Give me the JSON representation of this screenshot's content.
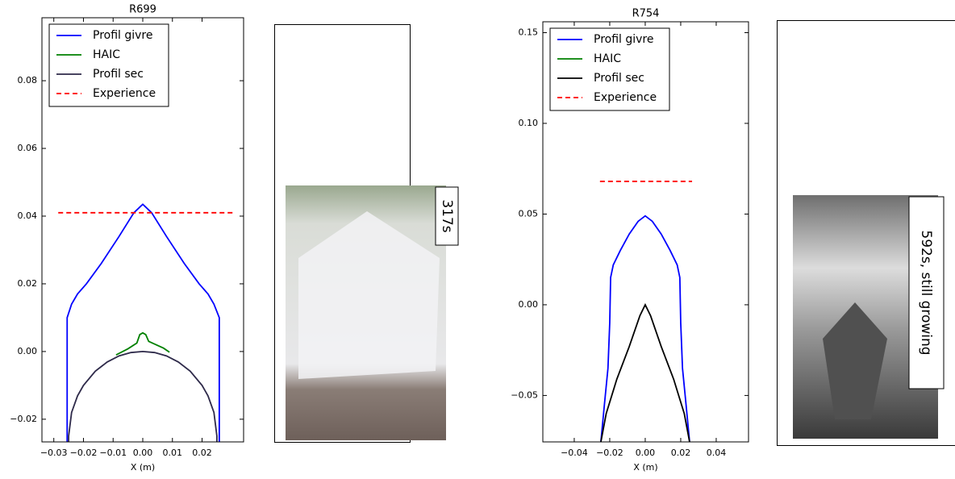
{
  "chart_data": [
    {
      "type": "line",
      "title": "R699",
      "xlabel": "X (m)",
      "xlim": [
        -0.034,
        0.034
      ],
      "ylim": [
        -0.0267,
        0.0986
      ],
      "xticks": [
        {
          "value": -0.03,
          "label": "−0.03"
        },
        {
          "value": -0.02,
          "label": "−0.02"
        },
        {
          "value": -0.01,
          "label": "−0.01"
        },
        {
          "value": 0,
          "label": "0.00"
        },
        {
          "value": 0.01,
          "label": "0.01"
        },
        {
          "value": 0.02,
          "label": "0.02"
        }
      ],
      "yticks": [
        {
          "value": -0.02,
          "label": "−0.02"
        },
        {
          "value": 0,
          "label": "0.00"
        },
        {
          "value": 0.02,
          "label": "0.02"
        },
        {
          "value": 0.04,
          "label": "0.04"
        },
        {
          "value": 0.06,
          "label": "0.06"
        },
        {
          "value": 0.08,
          "label": "0.08"
        }
      ],
      "legend": "upper left",
      "series": [
        {
          "name": "Profil givre",
          "color": "#0000ff",
          "x": [
            -0.0255,
            -0.0255,
            -0.024,
            -0.022,
            -0.019,
            -0.014,
            -0.008,
            -0.003,
            0,
            0.003,
            0.008,
            0.014,
            0.019,
            0.022,
            0.024,
            0.0258,
            0.0258
          ],
          "values": [
            -0.0267,
            0.01,
            0.014,
            0.017,
            0.02,
            0.026,
            0.034,
            0.041,
            0.0435,
            0.041,
            0.034,
            0.026,
            0.02,
            0.017,
            0.014,
            0.01,
            -0.0267
          ]
        },
        {
          "name": "HAIC",
          "color": "#008000",
          "x": [
            -0.009,
            -0.005,
            -0.002,
            -0.001,
            0,
            0.001,
            0.002,
            0.004,
            0.007,
            0.009
          ],
          "values": [
            -0.001,
            0.0008,
            0.0025,
            0.005,
            0.0055,
            0.005,
            0.003,
            0.0022,
            0.001,
            -0.0002
          ]
        },
        {
          "name": "Profil sec",
          "color": "#2e2a4a",
          "x": [
            -0.025,
            -0.025,
            -0.024,
            -0.022,
            -0.02,
            -0.016,
            -0.012,
            -0.008,
            -0.004,
            0,
            0.004,
            0.008,
            0.012,
            0.016,
            0.02,
            0.022,
            0.024,
            0.025,
            0.025
          ],
          "values": [
            -0.0267,
            -0.025,
            -0.018,
            -0.0131,
            -0.01,
            -0.0058,
            -0.0031,
            -0.0013,
            -0.0003,
            0,
            -0.0003,
            -0.0013,
            -0.0031,
            -0.0058,
            -0.01,
            -0.0131,
            -0.018,
            -0.025,
            -0.0267
          ]
        },
        {
          "name": "Experience",
          "color": "#ff0000",
          "linestyle": "dashed",
          "x": [
            -0.0285,
            0.0307
          ],
          "values": [
            0.041,
            0.041
          ]
        }
      ]
    },
    {
      "type": "line",
      "title": "R754",
      "xlabel": "X (m)",
      "xlim": [
        -0.0577,
        0.0582
      ],
      "ylim": [
        -0.0756,
        0.156
      ],
      "xticks": [
        {
          "value": -0.04,
          "label": "−0.04"
        },
        {
          "value": -0.02,
          "label": "−0.02"
        },
        {
          "value": 0,
          "label": "0.00"
        },
        {
          "value": 0.02,
          "label": "0.02"
        },
        {
          "value": 0.04,
          "label": "0.04"
        }
      ],
      "yticks": [
        {
          "value": -0.05,
          "label": "−0.05"
        },
        {
          "value": 0,
          "label": "0.00"
        },
        {
          "value": 0.05,
          "label": "0.05"
        },
        {
          "value": 0.1,
          "label": "0.10"
        },
        {
          "value": 0.15,
          "label": "0.15"
        }
      ],
      "legend": "upper left",
      "series": [
        {
          "name": "Profil givre",
          "color": "#0000ff",
          "x": [
            -0.025,
            -0.023,
            -0.021,
            -0.02,
            -0.0195,
            -0.018,
            -0.014,
            -0.009,
            -0.004,
            0,
            0.004,
            0.009,
            0.014,
            0.018,
            0.0195,
            0.02,
            0.021,
            0.023,
            0.025
          ],
          "values": [
            -0.0756,
            -0.055,
            -0.035,
            -0.01,
            0.015,
            0.022,
            0.03,
            0.039,
            0.046,
            0.049,
            0.046,
            0.039,
            0.03,
            0.022,
            0.015,
            -0.01,
            -0.035,
            -0.055,
            -0.0756
          ]
        },
        {
          "name": "HAIC",
          "color": "#008000",
          "x": [],
          "values": []
        },
        {
          "name": "Profil sec",
          "color": "#000000",
          "x": [
            -0.025,
            -0.022,
            -0.016,
            -0.009,
            -0.003,
            0,
            0.003,
            0.009,
            0.016,
            0.022,
            0.025
          ],
          "values": [
            -0.0756,
            -0.06,
            -0.041,
            -0.023,
            -0.006,
            0,
            -0.006,
            -0.023,
            -0.041,
            -0.06,
            -0.0756
          ]
        },
        {
          "name": "Experience",
          "color": "#ff0000",
          "linestyle": "dashed",
          "x": [
            -0.0255,
            0.0264
          ],
          "values": [
            0.068,
            0.068
          ]
        }
      ]
    }
  ],
  "photos": [
    {
      "label": "317s"
    },
    {
      "label": "592s, still growing"
    }
  ]
}
